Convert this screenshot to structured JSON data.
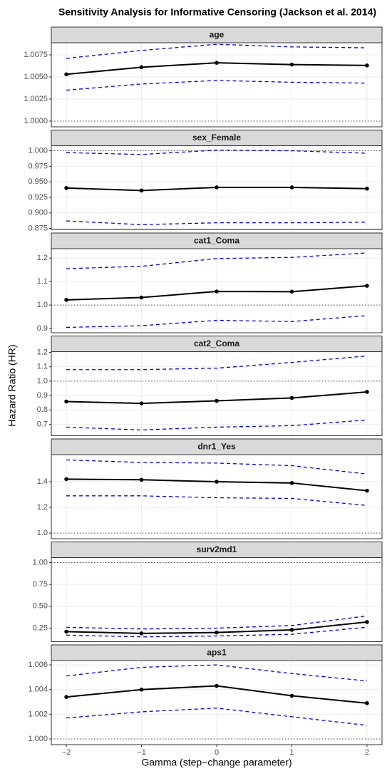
{
  "title": "Sensitivity Analysis for Informative Censoring (Jackson et al. 2014)",
  "y_label": "Hazard Ratio (HR)",
  "x_label": "Gamma (step−change parameter)",
  "xlim": [
    -2.2,
    2.2
  ],
  "xticks": [
    {
      "value": -2,
      "label": "−2"
    },
    {
      "value": -1,
      "label": "−1"
    },
    0,
    1,
    2
  ],
  "x": [
    -2,
    -1,
    0,
    1,
    2
  ],
  "chart_data": [
    {
      "type": "line",
      "title": "age",
      "ylim": [
        0.99935,
        1.00887
      ],
      "hline": 1,
      "grid": true,
      "yticks": [
        {
          "value": 1,
          "label": "1.0000"
        },
        1.0025,
        {
          "value": 1.005,
          "label": "1.0050"
        },
        1.0075
      ],
      "series": [
        {
          "color": "#000000",
          "dash": false,
          "markers": true,
          "values": [
            1.0053,
            1.0061,
            1.0066,
            1.0064,
            1.0063
          ]
        },
        {
          "color": "#0000ee",
          "dash": true,
          "markers": false,
          "values": [
            1.0071,
            1.008,
            1.0087,
            1.0084,
            1.0083
          ]
        },
        {
          "color": "#0000ee",
          "dash": true,
          "markers": false,
          "values": [
            1.0035,
            1.0042,
            1.0046,
            1.0044,
            1.0043
          ]
        }
      ]
    },
    {
      "type": "line",
      "title": "sex_Female",
      "ylim": [
        0.8727,
        1.0081
      ],
      "hline": 1,
      "grid": true,
      "yticks": [
        0.875,
        {
          "value": 0.9,
          "label": "0.900"
        },
        0.925,
        {
          "value": 0.95,
          "label": "0.950"
        },
        0.975,
        {
          "value": 1,
          "label": "1.000"
        }
      ],
      "series": [
        {
          "color": "#000000",
          "dash": false,
          "markers": true,
          "values": [
            0.94,
            0.936,
            0.941,
            0.941,
            0.939
          ]
        },
        {
          "color": "#0000ee",
          "dash": true,
          "markers": false,
          "values": [
            0.997,
            0.994,
            1.001,
            1.0,
            0.996
          ]
        },
        {
          "color": "#0000ee",
          "dash": true,
          "markers": false,
          "values": [
            0.887,
            0.881,
            0.884,
            0.884,
            0.885
          ]
        }
      ]
    },
    {
      "type": "line",
      "title": "cat1_Coma",
      "ylim": [
        0.882,
        1.24
      ],
      "hline": 1,
      "grid": true,
      "yticks": [
        0.9,
        {
          "value": 1,
          "label": "1.0"
        },
        1.1,
        1.2
      ],
      "series": [
        {
          "color": "#000000",
          "dash": false,
          "markers": true,
          "values": [
            1.022,
            1.032,
            1.058,
            1.057,
            1.082
          ]
        },
        {
          "color": "#0000ee",
          "dash": true,
          "markers": false,
          "values": [
            1.155,
            1.165,
            1.198,
            1.203,
            1.222
          ]
        },
        {
          "color": "#0000ee",
          "dash": true,
          "markers": false,
          "values": [
            0.905,
            0.912,
            0.935,
            0.93,
            0.955
          ]
        }
      ]
    },
    {
      "type": "line",
      "title": "cat2_Coma",
      "ylim": [
        0.62,
        1.205
      ],
      "hline": 1,
      "grid": true,
      "yticks": [
        0.7,
        0.8,
        0.9,
        {
          "value": 1,
          "label": "1.0"
        },
        1.1,
        1.2
      ],
      "series": [
        {
          "color": "#000000",
          "dash": false,
          "markers": true,
          "values": [
            0.858,
            0.845,
            0.863,
            0.883,
            0.925
          ]
        },
        {
          "color": "#0000ee",
          "dash": true,
          "markers": false,
          "values": [
            1.08,
            1.08,
            1.09,
            1.13,
            1.175
          ]
        },
        {
          "color": "#0000ee",
          "dash": true,
          "markers": false,
          "values": [
            0.68,
            0.66,
            0.68,
            0.69,
            0.73
          ]
        }
      ]
    },
    {
      "type": "line",
      "title": "dnr1_Yes",
      "ylim": [
        0.956,
        1.611
      ],
      "hline": 1,
      "grid": true,
      "yticks": [
        {
          "value": 1,
          "label": "1.0"
        },
        1.2,
        1.4
      ],
      "series": [
        {
          "color": "#000000",
          "dash": false,
          "markers": true,
          "values": [
            1.42,
            1.415,
            1.4,
            1.39,
            1.33
          ]
        },
        {
          "color": "#0000ee",
          "dash": true,
          "markers": false,
          "values": [
            1.57,
            1.55,
            1.545,
            1.525,
            1.46
          ]
        },
        {
          "color": "#0000ee",
          "dash": true,
          "markers": false,
          "values": [
            1.29,
            1.29,
            1.275,
            1.27,
            1.215
          ]
        }
      ]
    },
    {
      "type": "line",
      "title": "surv2md1",
      "ylim": [
        0.095,
        1.057
      ],
      "hline": 1,
      "grid": true,
      "yticks": [
        0.25,
        {
          "value": 0.5,
          "label": "0.50"
        },
        0.75,
        {
          "value": 1,
          "label": "1.00"
        }
      ],
      "series": [
        {
          "color": "#000000",
          "dash": false,
          "markers": true,
          "values": [
            0.21,
            0.19,
            0.2,
            0.23,
            0.32
          ]
        },
        {
          "color": "#0000ee",
          "dash": true,
          "markers": false,
          "values": [
            0.26,
            0.24,
            0.25,
            0.28,
            0.39
          ]
        },
        {
          "color": "#0000ee",
          "dash": true,
          "markers": false,
          "values": [
            0.17,
            0.15,
            0.16,
            0.18,
            0.26
          ]
        }
      ]
    },
    {
      "type": "line",
      "title": "aps1",
      "ylim": [
        0.99954,
        1.00635
      ],
      "hline": 1,
      "grid": true,
      "yticks": [
        {
          "value": 1,
          "label": "1.000"
        },
        1.002,
        1.004,
        1.006
      ],
      "series": [
        {
          "color": "#000000",
          "dash": false,
          "markers": true,
          "values": [
            1.0034,
            1.004,
            1.0043,
            1.0035,
            1.0029
          ]
        },
        {
          "color": "#0000ee",
          "dash": true,
          "markers": false,
          "values": [
            1.0051,
            1.0058,
            1.006,
            1.0053,
            1.0047
          ]
        },
        {
          "color": "#0000ee",
          "dash": true,
          "markers": false,
          "values": [
            1.0017,
            1.0022,
            1.0025,
            1.0018,
            1.0011
          ]
        }
      ]
    }
  ]
}
